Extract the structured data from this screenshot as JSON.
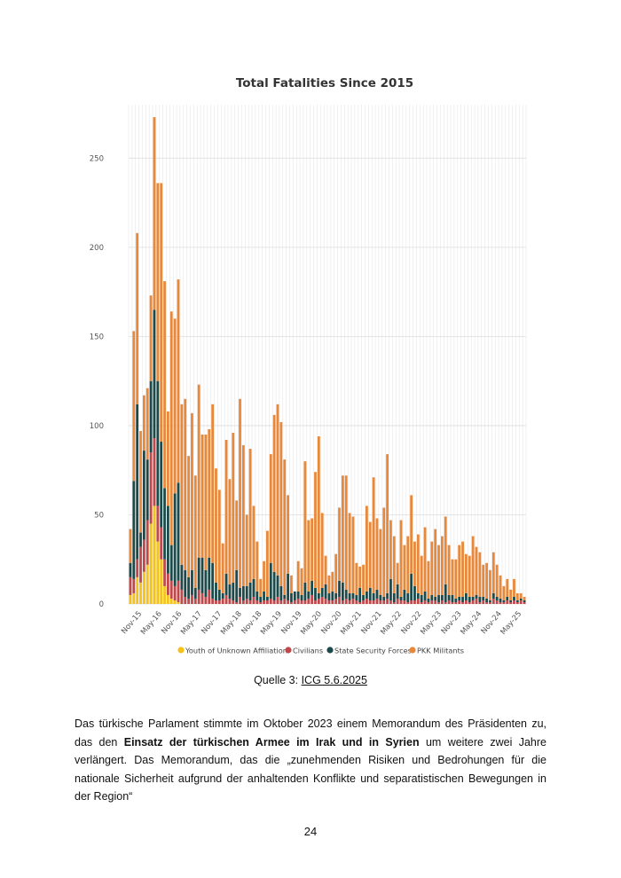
{
  "chart_data": {
    "type": "bar",
    "stacked": true,
    "title": "Total Fatalities Since 2015",
    "xlabel": "",
    "ylabel": "",
    "ylim": [
      0,
      280
    ],
    "yticks": [
      0,
      50,
      100,
      150,
      200,
      250
    ],
    "xtick_labels": [
      "Nov-15",
      "May-16",
      "Nov-16",
      "May-17",
      "Nov-17",
      "May-18",
      "Nov-18",
      "May-19",
      "Nov-19",
      "May-20",
      "Nov-20",
      "May-21",
      "Nov-21",
      "May-22",
      "Nov-22",
      "May-23",
      "Nov-23",
      "May-24",
      "Nov-24",
      "May-25"
    ],
    "grid": true,
    "legend_position": "bottom",
    "colors": {
      "youth": "#f5c218",
      "civilians": "#c0474a",
      "security": "#1c4a4a",
      "pkk": "#e8883a",
      "grid": "#e6e6e6"
    },
    "series": [
      {
        "name": "Youth of Unknown Affiliation",
        "key": "youth",
        "values": [
          5,
          6,
          15,
          12,
          18,
          22,
          45,
          55,
          35,
          25,
          10,
          5,
          3,
          2,
          1,
          0,
          0,
          0,
          0,
          0,
          0,
          0,
          0,
          0,
          0,
          0,
          0,
          0,
          0,
          0,
          0,
          0,
          0,
          0,
          0,
          0,
          0,
          0,
          0,
          0,
          0,
          0,
          0,
          0,
          0,
          0,
          0,
          0,
          0,
          0,
          0,
          0,
          0,
          0,
          0,
          0,
          0,
          0,
          0,
          0,
          0,
          0,
          0,
          0,
          0,
          0,
          0,
          0,
          0,
          0,
          0,
          0,
          0,
          0,
          0,
          0,
          0,
          0,
          0,
          0,
          0,
          0,
          0,
          0,
          0,
          0,
          0,
          0,
          0,
          0,
          0,
          0,
          0,
          0,
          0,
          0,
          0,
          0,
          0,
          0,
          0,
          0,
          0,
          0,
          0,
          0,
          0,
          0,
          0,
          0,
          0,
          0,
          0,
          0,
          0,
          0
        ]
      },
      {
        "name": "Civilians",
        "key": "civilians",
        "values": [
          10,
          8,
          10,
          20,
          18,
          25,
          40,
          38,
          20,
          18,
          15,
          12,
          10,
          8,
          12,
          8,
          4,
          3,
          5,
          3,
          8,
          6,
          4,
          8,
          3,
          2,
          2,
          3,
          5,
          3,
          2,
          1,
          4,
          2,
          3,
          2,
          4,
          2,
          1,
          2,
          2,
          3,
          2,
          4,
          2,
          3,
          2,
          1,
          2,
          3,
          2,
          2,
          3,
          5,
          2,
          3,
          4,
          3,
          2,
          2,
          3,
          4,
          2,
          3,
          2,
          3,
          2,
          1,
          2,
          3,
          2,
          2,
          3,
          2,
          2,
          3,
          2,
          1,
          3,
          2,
          2,
          1,
          2,
          2,
          3,
          1,
          2,
          1,
          2,
          2,
          1,
          2,
          1,
          2,
          1,
          1,
          2,
          1,
          2,
          1,
          2,
          3,
          1,
          2,
          1,
          1,
          3,
          2,
          1,
          1,
          2,
          1,
          2,
          1,
          2,
          1
        ]
      },
      {
        "name": "State Security Forces",
        "key": "security",
        "values": [
          8,
          55,
          87,
          8,
          50,
          34,
          40,
          72,
          70,
          48,
          40,
          38,
          20,
          52,
          55,
          14,
          15,
          12,
          14,
          6,
          18,
          20,
          15,
          18,
          20,
          10,
          6,
          3,
          12,
          8,
          10,
          18,
          5,
          8,
          7,
          10,
          10,
          5,
          3,
          5,
          2,
          20,
          16,
          12,
          8,
          2,
          15,
          5,
          5,
          4,
          3,
          10,
          4,
          8,
          7,
          3,
          5,
          8,
          4,
          5,
          3,
          9,
          10,
          5,
          4,
          3,
          3,
          8,
          3,
          4,
          7,
          4,
          5,
          3,
          2,
          3,
          12,
          5,
          8,
          2,
          6,
          5,
          15,
          8,
          3,
          4,
          5,
          2,
          3,
          2,
          4,
          3,
          10,
          3,
          4,
          2,
          2,
          3,
          4,
          3,
          2,
          2,
          3,
          2,
          2,
          1,
          3,
          2,
          2,
          1,
          2,
          1,
          2,
          1,
          1,
          1
        ]
      },
      {
        "name": "PKK Militants",
        "key": "pkk",
        "values": [
          19,
          84,
          96,
          57,
          31,
          40,
          48,
          108,
          111,
          145,
          116,
          53,
          131,
          98,
          114,
          90,
          96,
          68,
          88,
          63,
          97,
          69,
          76,
          72,
          89,
          64,
          56,
          28,
          75,
          59,
          84,
          39,
          106,
          79,
          40,
          75,
          41,
          28,
          10,
          17,
          37,
          61,
          88,
          96,
          92,
          76,
          44,
          10,
          0,
          17,
          15,
          68,
          40,
          35,
          65,
          88,
          42,
          16,
          10,
          11,
          22,
          41,
          60,
          64,
          45,
          43,
          18,
          12,
          17,
          48,
          37,
          65,
          40,
          37,
          50,
          78,
          33,
          32,
          12,
          43,
          25,
          32,
          44,
          25,
          33,
          22,
          36,
          21,
          30,
          38,
          28,
          33,
          38,
          28,
          20,
          22,
          29,
          31,
          22,
          23,
          34,
          27,
          25,
          18,
          20,
          17,
          23,
          18,
          13,
          8,
          10,
          6,
          10,
          4,
          3,
          2
        ]
      }
    ]
  },
  "caption": {
    "prefix": "Quelle 3: ",
    "link": "ICG 5.6.2025"
  },
  "paragraph": {
    "part1": "Das türkische Parlament stimmte im Oktober 2023 einem Memorandum des Präsidenten zu, das den ",
    "bold": "Einsatz der türkischen Armee im Irak und in Syrien",
    "part2": " um weitere zwei Jahre verlängert. Das Memorandum, das die „zunehmenden Risiken und Bedrohungen für die nationale Sicherheit aufgrund der anhaltenden Konflikte und separatistischen Bewegungen in der Region“"
  },
  "page_number": "24"
}
